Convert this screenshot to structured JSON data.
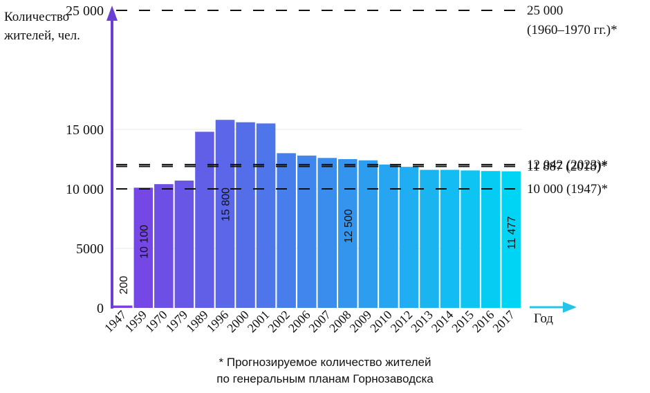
{
  "chart_data": {
    "type": "bar",
    "categories": [
      "1947",
      "1959",
      "1970",
      "1979",
      "1989",
      "1996",
      "2000",
      "2001",
      "2002",
      "2006",
      "2007",
      "2008",
      "2009",
      "2010",
      "2012",
      "2013",
      "2014",
      "2015",
      "2016",
      "2017"
    ],
    "values": [
      200,
      10100,
      10400,
      10700,
      14800,
      15800,
      15600,
      15500,
      13000,
      12800,
      12600,
      12500,
      12400,
      12050,
      11850,
      11600,
      11600,
      11550,
      11500,
      11477
    ],
    "bar_labels": [
      {
        "index": 0,
        "text": "200"
      },
      {
        "index": 1,
        "text": "10 100"
      },
      {
        "index": 5,
        "text": "15 800"
      },
      {
        "index": 11,
        "text": "12 500"
      },
      {
        "index": 19,
        "text": "11 477"
      }
    ],
    "ylabel": "Количество жителей, чел.",
    "ylabel_lines": [
      "Количество",
      "жителей, чел."
    ],
    "xlabel": "Год",
    "yticks": [
      {
        "value": 0,
        "label": "0"
      },
      {
        "value": 5000,
        "label": "5000"
      },
      {
        "value": 10000,
        "label": "10 000"
      },
      {
        "value": 15000,
        "label": "15 000"
      },
      {
        "value": 25000,
        "label": "25 000"
      }
    ],
    "reference_lines": [
      {
        "value": 25000,
        "label": "25 000",
        "label_line2": "(1960–1970 гг.)*"
      },
      {
        "value": 12042,
        "label": "12 042 (2023)*"
      },
      {
        "value": 11887,
        "label": "11 887 (2018)*"
      },
      {
        "value": 10000,
        "label": "10 000 (1947)*"
      }
    ],
    "gridlines": [
      5000,
      10000,
      15000
    ],
    "colors": {
      "start": "#7b3fe4",
      "end": "#00d4f5",
      "axis_arrow_y": "#6a3fd4",
      "axis_arrow_x": "#22c4e8"
    }
  },
  "footnote": {
    "line1": "* Прогнозируемое количество жителей",
    "line2": "по генеральным планам Горнозаводска"
  }
}
